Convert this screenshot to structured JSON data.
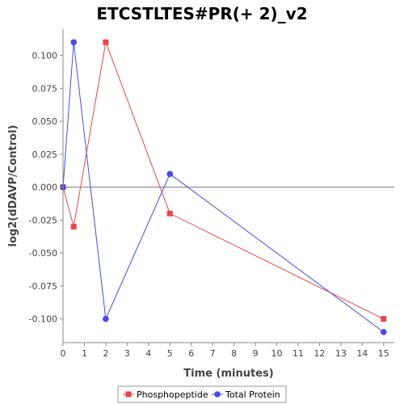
{
  "chart_data": {
    "type": "line",
    "title": "ETCSTLTES#PR(+ 2)_v2",
    "xlabel": "Time (minutes)",
    "ylabel": "log2(dDAVP/Control)",
    "xlim": [
      0,
      15.5
    ],
    "ylim": [
      -0.118,
      0.12
    ],
    "xticks": [
      0,
      1,
      2,
      3,
      4,
      5,
      6,
      7,
      8,
      9,
      10,
      11,
      12,
      13,
      14,
      15
    ],
    "yticks": [
      -0.1,
      -0.075,
      -0.05,
      -0.025,
      0.0,
      0.025,
      0.05,
      0.075,
      0.1
    ],
    "ytick_labels": [
      "-0.100",
      "-0.075",
      "-0.050",
      "-0.025",
      "0.000",
      "0.025",
      "0.050",
      "0.075",
      "0.100"
    ],
    "zero_line": true,
    "grid": false,
    "legend_position": "bottom",
    "series": [
      {
        "name": "Phosphopeptide",
        "color": "#e8474b",
        "marker": "square",
        "x": [
          0,
          0.5,
          2,
          5,
          15
        ],
        "y": [
          0.0,
          -0.03,
          0.11,
          -0.02,
          -0.1
        ]
      },
      {
        "name": "Total Protein",
        "color": "#4a4ae6",
        "marker": "circle",
        "x": [
          0,
          0.5,
          2,
          5,
          15
        ],
        "y": [
          0.0,
          0.11,
          -0.1,
          0.01,
          -0.11
        ]
      }
    ]
  }
}
